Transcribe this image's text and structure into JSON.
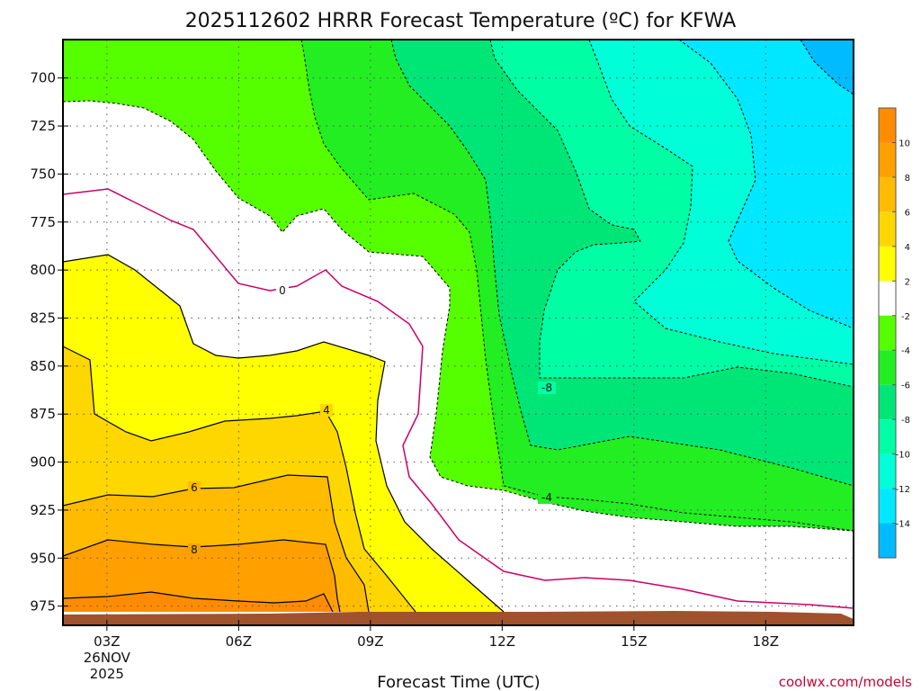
{
  "chart_data": {
    "type": "heatmap",
    "title": "2025112602 HRRR Forecast Temperature (ºC) for KFWA",
    "xlabel": "Forecast Time (UTC)",
    "ylabel": "",
    "y_axis": {
      "ticks": [
        "700",
        "725",
        "750",
        "775",
        "800",
        "825",
        "850",
        "875",
        "900",
        "925",
        "950",
        "975"
      ],
      "values": [
        700,
        725,
        750,
        775,
        800,
        825,
        850,
        875,
        900,
        925,
        950,
        975
      ],
      "range": [
        680,
        985
      ],
      "inverted": true
    },
    "x_axis": {
      "ticks": [
        {
          "hour": 3,
          "label": "03Z",
          "sub": [
            "26NOV",
            "2025"
          ]
        },
        {
          "hour": 6,
          "label": "06Z"
        },
        {
          "hour": 9,
          "label": "09Z"
        },
        {
          "hour": 12,
          "label": "12Z"
        },
        {
          "hour": 15,
          "label": "15Z"
        },
        {
          "hour": 18,
          "label": "18Z"
        }
      ],
      "range": [
        2,
        20
      ]
    },
    "grid": true,
    "colorbar": {
      "orientation": "vertical",
      "placement": "right",
      "bins": [
        {
          "range": [
            10,
            12
          ],
          "color": "#ff8c00"
        },
        {
          "range": [
            8,
            10
          ],
          "color": "#ff9f00"
        },
        {
          "range": [
            6,
            8
          ],
          "color": "#ffbb00"
        },
        {
          "range": [
            4,
            6
          ],
          "color": "#ffd700"
        },
        {
          "range": [
            2,
            4
          ],
          "color": "#ffff00"
        },
        {
          "range": [
            -2,
            2
          ],
          "color": "#ffffff"
        },
        {
          "range": [
            -4,
            -2
          ],
          "color": "#55ff00"
        },
        {
          "range": [
            -6,
            -4
          ],
          "color": "#22ee22"
        },
        {
          "range": [
            -8,
            -6
          ],
          "color": "#00e676"
        },
        {
          "range": [
            -10,
            -8
          ],
          "color": "#00ffa5"
        },
        {
          "range": [
            -12,
            -10
          ],
          "color": "#00ffd8"
        },
        {
          "range": [
            -14,
            -12
          ],
          "color": "#00e8ff"
        },
        {
          "range": [
            -16,
            -14
          ],
          "color": "#00bbff"
        }
      ],
      "tick_labels": [
        "10",
        "8",
        "6",
        "4",
        "2",
        "-2",
        "-4",
        "-6",
        "-8",
        "-10",
        "-12",
        "-14"
      ]
    },
    "contour_labels": [
      "0",
      "4",
      "6",
      "8",
      "-8",
      "-4"
    ],
    "surface_color": "#a0522d"
  },
  "credit": "coolwx.com/models",
  "colors": {
    "zero_line": "#cc0066",
    "credit": "#cc0033"
  }
}
